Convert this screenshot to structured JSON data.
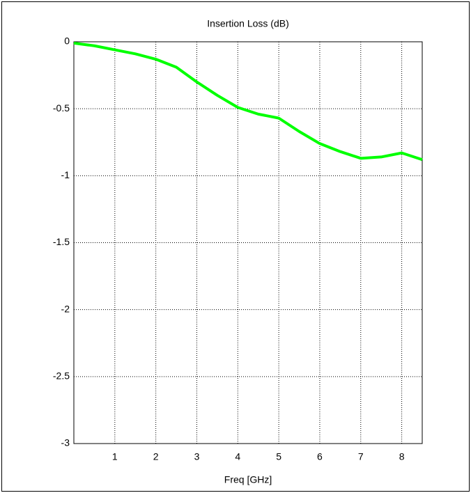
{
  "chart_data": {
    "type": "line",
    "title": "Insertion Loss (dB)",
    "x_label": "Freq [GHz]",
    "x": [
      0,
      0.5,
      1,
      1.5,
      2,
      2.5,
      3,
      3.5,
      4,
      4.5,
      5,
      5.5,
      6,
      6.5,
      7,
      7.5,
      8,
      8.5
    ],
    "values": [
      -0.01,
      -0.03,
      -0.06,
      -0.09,
      -0.13,
      -0.19,
      -0.3,
      -0.4,
      -0.49,
      -0.54,
      -0.57,
      -0.67,
      -0.76,
      -0.82,
      -0.87,
      -0.86,
      -0.83,
      -0.88
    ],
    "color": "#00ff00",
    "xlim": [
      0,
      8.5
    ],
    "xticks": [
      1,
      2,
      3,
      4,
      5,
      6,
      7,
      8
    ],
    "ylim": [
      -3,
      0
    ],
    "yticks": [
      0,
      -0.5,
      -1,
      -1.5,
      -2,
      -2.5,
      -3
    ],
    "grid": true
  }
}
